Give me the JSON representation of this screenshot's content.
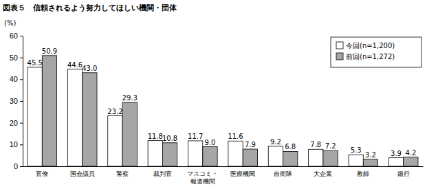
{
  "chart_data": {
    "type": "bar",
    "title": "図表５　信頼されるよう努力してほしい機関・団体",
    "y_label": "(%)",
    "categories": [
      "官僚",
      "国会議員",
      "警察",
      "裁判官",
      "マスコミ・\n報道機関",
      "医療機関",
      "自衛隊",
      "大企業",
      "教師",
      "銀行"
    ],
    "series": [
      {
        "name": "今回(n=1,200)",
        "color": "#ffffff",
        "values": [
          45.5,
          44.6,
          23.2,
          11.8,
          11.7,
          11.6,
          9.2,
          7.8,
          5.3,
          3.9
        ],
        "value_labels": [
          "45.5",
          "44.6",
          "23.2",
          "11.8",
          "11.7",
          "11.6",
          "9.2",
          "7.8",
          "5.3",
          "3.9"
        ]
      },
      {
        "name": "前回(n=1,272)",
        "color": "#a6a6a6",
        "values": [
          50.9,
          43.0,
          29.3,
          10.8,
          9.0,
          7.9,
          6.8,
          7.2,
          3.2,
          4.2
        ],
        "value_labels": [
          "50.9",
          "43.0",
          "29.3",
          "10.8",
          "9.0",
          "7.9",
          "6.8",
          "7.2",
          "3.2",
          "4.2"
        ]
      }
    ],
    "ylim": [
      0,
      60
    ],
    "yticks": [
      0,
      10,
      20,
      30,
      40,
      50,
      60
    ],
    "grid": false,
    "legend": "upper right",
    "data_labels": true
  }
}
